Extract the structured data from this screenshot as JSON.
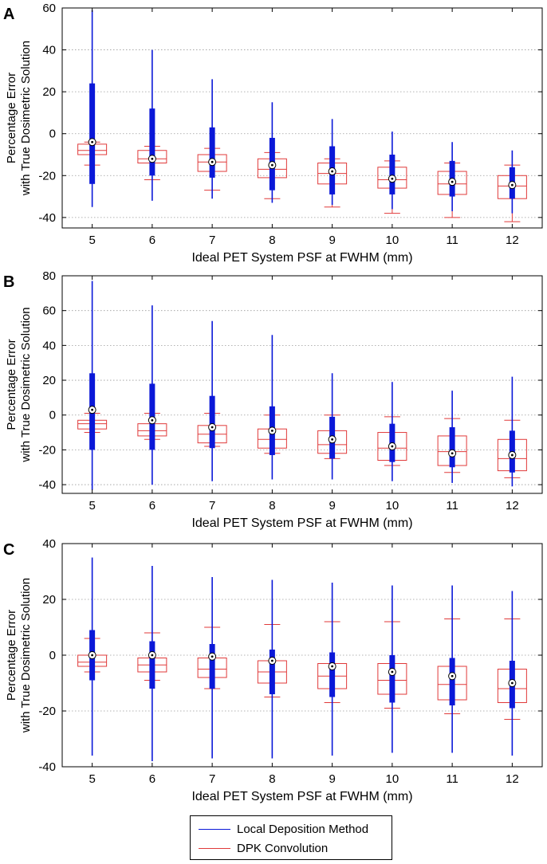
{
  "figure": {
    "colors": {
      "ldm": "#0a18d8",
      "dpk": "#e03a3a",
      "median_marker": "#000000"
    },
    "legend": {
      "entries": [
        {
          "label": "Local Deposition Method",
          "color": "#0a18d8"
        },
        {
          "label": "DPK Convolution",
          "color": "#e03a3a"
        }
      ]
    }
  },
  "chart_data": [
    {
      "type": "boxplot",
      "panel_label": "A",
      "xlabel": "Ideal PET System PSF at FWHM (mm)",
      "ylabel": [
        "Percentage Error",
        "with True Dosimetric Solution"
      ],
      "categories": [
        "5",
        "6",
        "7",
        "8",
        "9",
        "10",
        "11",
        "12"
      ],
      "ylim": [
        -45,
        60
      ],
      "yticks": [
        -40,
        -20,
        0,
        20,
        40,
        60
      ],
      "grid": "horizontal dotted",
      "series": [
        {
          "name": "Local Deposition Method",
          "style": "thick-box",
          "stats": [
            {
              "min": -35,
              "q1": -24,
              "median": -4,
              "q3": 24,
              "max": 59
            },
            {
              "min": -32,
              "q1": -20,
              "median": -12,
              "q3": 12,
              "max": 40
            },
            {
              "min": -31,
              "q1": -21,
              "median": -13.5,
              "q3": 3,
              "max": 26
            },
            {
              "min": -33,
              "q1": -27,
              "median": -15,
              "q3": -2,
              "max": 15
            },
            {
              "min": -34,
              "q1": -29,
              "median": -18,
              "q3": -6,
              "max": 7
            },
            {
              "min": -36,
              "q1": -29,
              "median": -21.5,
              "q3": -10,
              "max": 1
            },
            {
              "min": -37,
              "q1": -30,
              "median": -23,
              "q3": -13,
              "max": -4
            },
            {
              "min": -38,
              "q1": -31,
              "median": -24.5,
              "q3": -16,
              "max": -8
            }
          ]
        },
        {
          "name": "DPK Convolution",
          "style": "outline-box",
          "stats": [
            {
              "min": -15,
              "q1": -10,
              "median": -8,
              "q3": -5,
              "max": -4
            },
            {
              "min": -22,
              "q1": -14,
              "median": -12,
              "q3": -8,
              "max": -6
            },
            {
              "min": -27,
              "q1": -18,
              "median": -13.5,
              "q3": -10,
              "max": -7
            },
            {
              "min": -31,
              "q1": -21,
              "median": -17,
              "q3": -12,
              "max": -9
            },
            {
              "min": -35,
              "q1": -24,
              "median": -19,
              "q3": -14,
              "max": -12
            },
            {
              "min": -38,
              "q1": -26,
              "median": -22,
              "q3": -16,
              "max": -13
            },
            {
              "min": -40,
              "q1": -29,
              "median": -24,
              "q3": -18,
              "max": -14
            },
            {
              "min": -42,
              "q1": -31,
              "median": -25,
              "q3": -20,
              "max": -15
            }
          ]
        }
      ]
    },
    {
      "type": "boxplot",
      "panel_label": "B",
      "xlabel": "Ideal PET System PSF at FWHM (mm)",
      "ylabel": [
        "Percentage Error",
        "with True Dosimetric Solution"
      ],
      "categories": [
        "5",
        "6",
        "7",
        "8",
        "9",
        "10",
        "11",
        "12"
      ],
      "ylim": [
        -45,
        80
      ],
      "yticks": [
        -40,
        -20,
        0,
        20,
        40,
        60,
        80
      ],
      "grid": "horizontal dotted",
      "series": [
        {
          "name": "Local Deposition Method",
          "style": "thick-box",
          "stats": [
            {
              "min": -43,
              "q1": -20,
              "median": 3,
              "q3": 24,
              "max": 77
            },
            {
              "min": -40,
              "q1": -20,
              "median": -3,
              "q3": 18,
              "max": 63
            },
            {
              "min": -38,
              "q1": -19,
              "median": -7,
              "q3": 11,
              "max": 54
            },
            {
              "min": -37,
              "q1": -23,
              "median": -9,
              "q3": 5,
              "max": 46
            },
            {
              "min": -37,
              "q1": -25,
              "median": -14,
              "q3": -1,
              "max": 24
            },
            {
              "min": -38,
              "q1": -27,
              "median": -18,
              "q3": -5,
              "max": 19
            },
            {
              "min": -39,
              "q1": -30,
              "median": -22,
              "q3": -7,
              "max": 14
            },
            {
              "min": -41,
              "q1": -33,
              "median": -23,
              "q3": -9,
              "max": 22
            }
          ]
        },
        {
          "name": "DPK Convolution",
          "style": "outline-box",
          "stats": [
            {
              "min": -10,
              "q1": -8,
              "median": -5,
              "q3": -3,
              "max": 1
            },
            {
              "min": -14,
              "q1": -12,
              "median": -9,
              "q3": -5,
              "max": 1
            },
            {
              "min": -18,
              "q1": -16,
              "median": -11,
              "q3": -6,
              "max": 1
            },
            {
              "min": -22,
              "q1": -19,
              "median": -14,
              "q3": -8,
              "max": 0
            },
            {
              "min": -25,
              "q1": -22,
              "median": -17,
              "q3": -9,
              "max": 0
            },
            {
              "min": -29,
              "q1": -26,
              "median": -19,
              "q3": -10,
              "max": -1
            },
            {
              "min": -33,
              "q1": -29,
              "median": -21,
              "q3": -12,
              "max": -2
            },
            {
              "min": -36,
              "q1": -32,
              "median": -25,
              "q3": -14,
              "max": -3
            }
          ]
        }
      ]
    },
    {
      "type": "boxplot",
      "panel_label": "C",
      "xlabel": "Ideal PET System PSF at FWHM (mm)",
      "ylabel": [
        "Percentage Error",
        "with True Dosimetric Solution"
      ],
      "categories": [
        "5",
        "6",
        "7",
        "8",
        "9",
        "10",
        "11",
        "12"
      ],
      "ylim": [
        -40,
        40
      ],
      "yticks": [
        -40,
        -20,
        0,
        20,
        40
      ],
      "grid": "horizontal dotted",
      "series": [
        {
          "name": "Local Deposition Method",
          "style": "thick-box",
          "stats": [
            {
              "min": -36,
              "q1": -9,
              "median": 0,
              "q3": 9,
              "max": 35
            },
            {
              "min": -38,
              "q1": -12,
              "median": 0,
              "q3": 5,
              "max": 32
            },
            {
              "min": -37,
              "q1": -12,
              "median": -0.5,
              "q3": 4,
              "max": 28
            },
            {
              "min": -37,
              "q1": -14,
              "median": -2,
              "q3": 2,
              "max": 27
            },
            {
              "min": -36,
              "q1": -15,
              "median": -4,
              "q3": 1,
              "max": 26
            },
            {
              "min": -35,
              "q1": -17,
              "median": -6,
              "q3": 0,
              "max": 25
            },
            {
              "min": -35,
              "q1": -18,
              "median": -7.5,
              "q3": -1,
              "max": 25
            },
            {
              "min": -36,
              "q1": -19,
              "median": -10,
              "q3": -2,
              "max": 23
            }
          ]
        },
        {
          "name": "DPK Convolution",
          "style": "outline-box",
          "stats": [
            {
              "min": -6,
              "q1": -4,
              "median": -2.5,
              "q3": 0,
              "max": 6
            },
            {
              "min": -9,
              "q1": -6,
              "median": -3.5,
              "q3": -1,
              "max": 8
            },
            {
              "min": -12,
              "q1": -8,
              "median": -5,
              "q3": -1,
              "max": 10
            },
            {
              "min": -15,
              "q1": -10,
              "median": -6,
              "q3": -2,
              "max": 11
            },
            {
              "min": -17,
              "q1": -12,
              "median": -7.5,
              "q3": -3,
              "max": 12
            },
            {
              "min": -19,
              "q1": -14,
              "median": -9,
              "q3": -3,
              "max": 12
            },
            {
              "min": -21,
              "q1": -16,
              "median": -10.5,
              "q3": -4,
              "max": 13
            },
            {
              "min": -23,
              "q1": -17,
              "median": -12,
              "q3": -5,
              "max": 13
            }
          ]
        }
      ]
    }
  ]
}
